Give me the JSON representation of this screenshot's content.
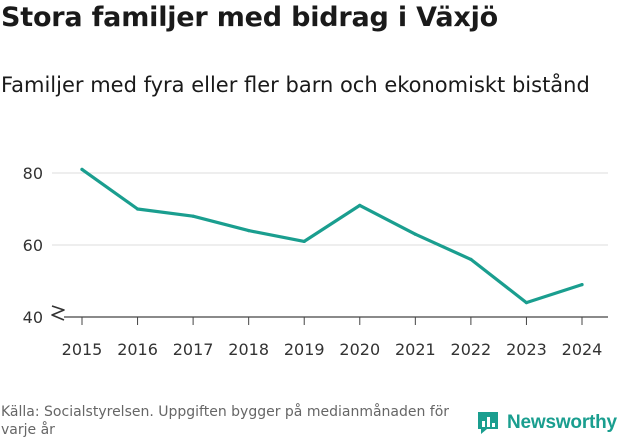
{
  "title": "Stora familjer med bidrag i Växjö",
  "subtitle": "Familjer med fyra eller fler barn och ekonomiskt bistånd",
  "source": "Källa: Socialstyrelsen. Uppgiften bygger på medianmånaden för varje år",
  "logo": {
    "text": "Newsworthy",
    "icon": "newsworthy-logo-icon",
    "color": "#1a9e8f"
  },
  "chart_data": {
    "type": "line",
    "title": "Stora familjer med bidrag i Växjö",
    "subtitle": "Familjer med fyra eller fler barn och ekonomiskt bistånd",
    "xlabel": "",
    "ylabel": "",
    "x": [
      "2015",
      "2016",
      "2017",
      "2018",
      "2019",
      "2020",
      "2021",
      "2022",
      "2023",
      "2024"
    ],
    "series": [
      {
        "name": "Familjer",
        "values": [
          81,
          70,
          68,
          64,
          61,
          71,
          63,
          56,
          44,
          49
        ],
        "color": "#1a9e8f"
      }
    ],
    "ylim": [
      40,
      85
    ],
    "yticks": [
      40,
      60,
      80
    ],
    "y_axis_break": true,
    "grid": true,
    "legend": "none"
  }
}
